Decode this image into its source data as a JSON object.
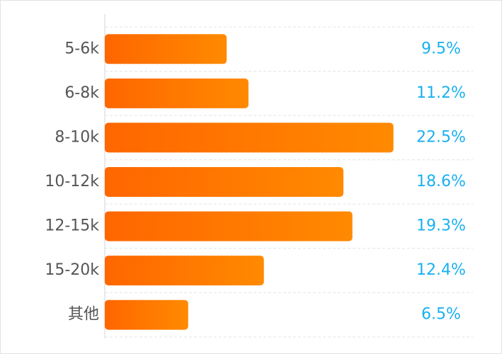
{
  "chart_data": {
    "type": "bar",
    "orientation": "horizontal",
    "categories": [
      "5-6k",
      "6-8k",
      "8-10k",
      "10-12k",
      "12-15k",
      "15-20k",
      "其他"
    ],
    "values": [
      9.5,
      11.2,
      22.5,
      18.6,
      19.3,
      12.4,
      6.5
    ],
    "value_labels": [
      "9.5%",
      "11.2%",
      "22.5%",
      "18.6%",
      "19.3%",
      "12.4%",
      "6.5%"
    ],
    "xlim": [
      0,
      25
    ],
    "grid": true,
    "color": "#ff7a00",
    "label_color": "#1ab0f0"
  }
}
